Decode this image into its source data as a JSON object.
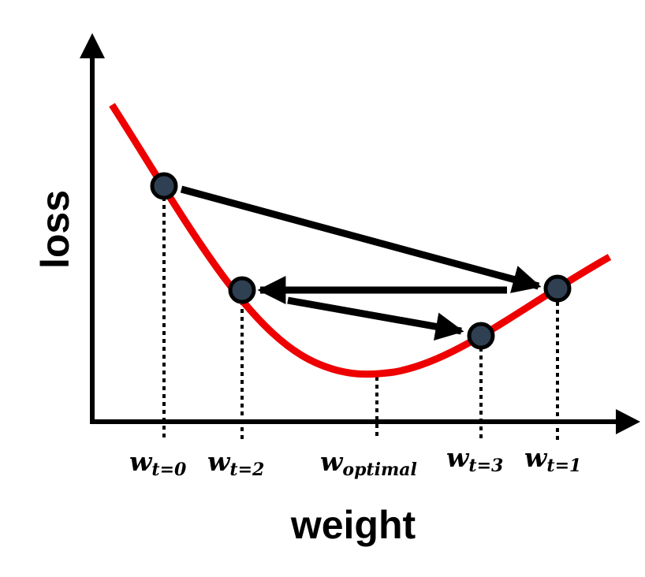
{
  "labels": {
    "y_axis": "loss",
    "x_axis": "weight"
  },
  "weight_labels": {
    "t0": {
      "base": "w",
      "sub": "t=0"
    },
    "t2": {
      "base": "w",
      "sub": "t=2"
    },
    "optimal": {
      "base": "w",
      "sub": "optimal"
    },
    "t3": {
      "base": "w",
      "sub": "t=3"
    },
    "t1": {
      "base": "w",
      "sub": "t=1"
    }
  },
  "colors": {
    "curve": "#ee0000",
    "point_fill": "#2f4052",
    "ink": "#000000"
  }
}
